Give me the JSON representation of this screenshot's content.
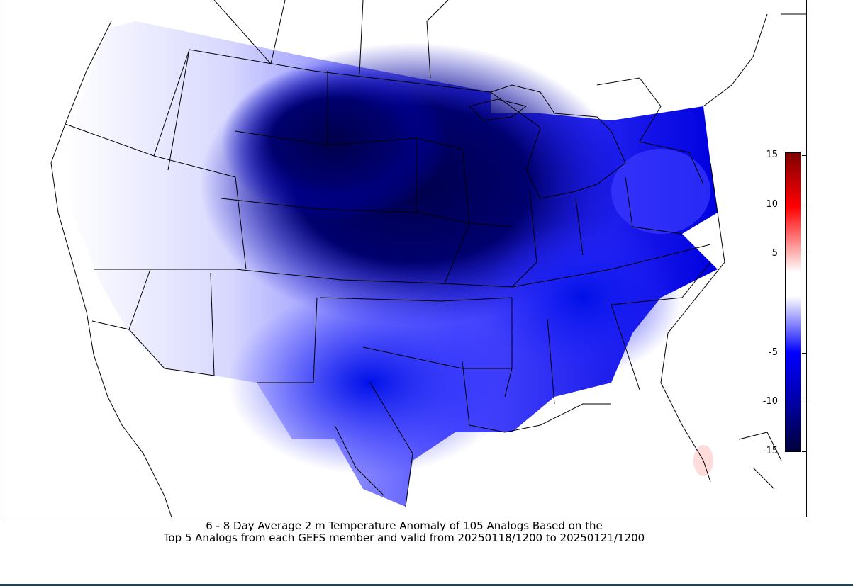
{
  "map": {
    "region": "Contiguous United States",
    "projection": "Lambert Conformal",
    "field": "2 m Temperature Anomaly"
  },
  "colorbar": {
    "min": -15,
    "max": 15,
    "ticks": [
      {
        "value": 15,
        "label": "15"
      },
      {
        "value": 10,
        "label": "10"
      },
      {
        "value": 5,
        "label": "5"
      },
      {
        "value": -5,
        "label": "-5"
      },
      {
        "value": -10,
        "label": "-10"
      },
      {
        "value": -15,
        "label": "-15"
      }
    ],
    "colors": {
      "cold_extreme": "#00003a",
      "cold": "#0000ff",
      "neutral": "#ffffff",
      "warm": "#ff0000",
      "warm_extreme": "#800000"
    }
  },
  "caption": {
    "line1": "6 - 8 Day  Average 2 m Temperature Anomaly of 105 Analogs Based on the",
    "line2": "Top 5 Analogs from each GEFS member and valid from 20250118/1200 to 20250121/1200"
  }
}
